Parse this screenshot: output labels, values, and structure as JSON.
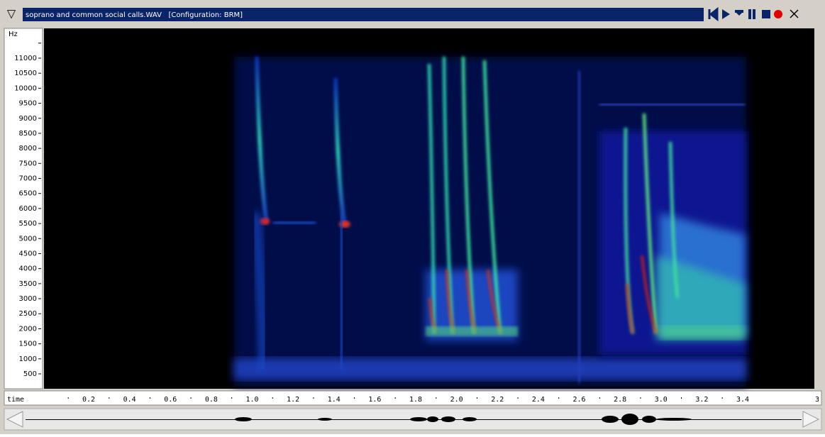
{
  "window": {
    "title": "soprano and common social calls.WAV   [Configuration: BRM]"
  },
  "y_axis": {
    "unit": "Hz",
    "ticks": [
      "11000",
      "10500",
      "10000",
      "9500",
      "9000",
      "8500",
      "8000",
      "7500",
      "7000",
      "6500",
      "6000",
      "5500",
      "5000",
      "4500",
      "4000",
      "3500",
      "3000",
      "2500",
      "2000",
      "1500",
      "1000",
      "500"
    ]
  },
  "x_axis": {
    "label": "time",
    "ticks": [
      "0.2",
      "0.4",
      "0.6",
      "0.8",
      "1.0",
      "1.2",
      "1.4",
      "1.6",
      "1.8",
      "2.0",
      "2.2",
      "2.4",
      "2.6",
      "2.8",
      "3.0",
      "3.2",
      "3.4",
      "3"
    ]
  }
}
